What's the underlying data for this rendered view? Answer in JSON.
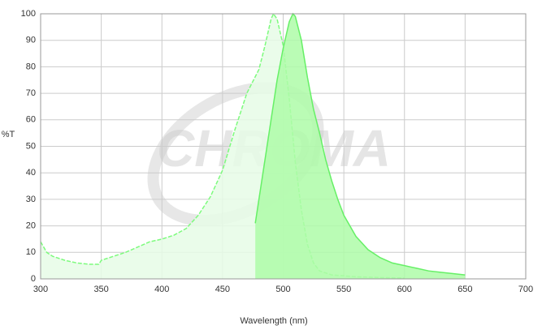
{
  "chart_data": {
    "type": "area",
    "watermark": "CHROMA",
    "xlabel": "Wavelength (nm)",
    "ylabel": "%T",
    "xlim": [
      300,
      700
    ],
    "xticks": [
      300,
      350,
      400,
      450,
      500,
      550,
      600,
      650,
      700
    ],
    "ylim": [
      0,
      100
    ],
    "yticks": [
      0,
      10,
      20,
      30,
      40,
      50,
      60,
      70,
      80,
      90,
      100
    ],
    "grid": true,
    "series": [
      {
        "color": "#7dfb7d",
        "fill": "#e6fbe6",
        "dashed": true,
        "x": [
          300,
          305,
          310,
          320,
          330,
          340,
          348,
          350,
          360,
          370,
          380,
          390,
          400,
          410,
          420,
          430,
          440,
          450,
          460,
          470,
          480,
          485,
          490,
          492,
          495,
          500,
          505,
          510,
          515,
          520,
          525,
          530,
          540,
          560,
          580,
          600
        ],
        "values": [
          14,
          10,
          8.5,
          7,
          6,
          5.5,
          5.5,
          7,
          8.5,
          10,
          12,
          14,
          15,
          16.5,
          19,
          24,
          31,
          41,
          56,
          70,
          79,
          88,
          98,
          100,
          98,
          88,
          68,
          44,
          26,
          13,
          6,
          3,
          1.5,
          0.8,
          0.5,
          0.3
        ]
      },
      {
        "color": "#66f066",
        "fill": "#aefca8",
        "dashed": false,
        "x": [
          477,
          480,
          485,
          490,
          495,
          500,
          505,
          508,
          510,
          515,
          520,
          525,
          530,
          535,
          540,
          545,
          550,
          560,
          570,
          580,
          590,
          600,
          610,
          620,
          630,
          640,
          650
        ],
        "values": [
          21,
          30,
          45,
          60,
          75,
          87,
          97,
          100,
          99,
          90,
          76,
          64,
          55,
          45,
          37,
          30,
          24,
          16,
          11,
          8,
          6,
          5,
          4,
          3,
          2.5,
          2,
          1.5
        ]
      }
    ]
  }
}
